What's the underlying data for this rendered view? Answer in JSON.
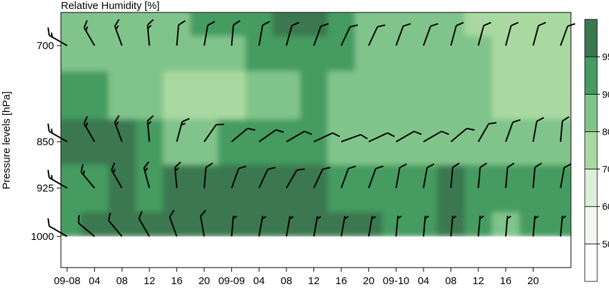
{
  "chart_data": {
    "type": "heatmap",
    "title": "Relative Humidity [%]",
    "ylabel": "Pressure levels [hPa]",
    "xlabel": "",
    "y_axis": {
      "levels": [
        700,
        850,
        925,
        1000
      ],
      "inverted": true
    },
    "x_axis": {
      "tick_labels": [
        "09-08",
        "04",
        "08",
        "12",
        "16",
        "20",
        "09-09",
        "04",
        "08",
        "12",
        "16",
        "20",
        "09-10",
        "04",
        "08",
        "12",
        "16",
        "20"
      ],
      "range_hours": [
        0,
        72
      ]
    },
    "colorbar": {
      "tick_labels": [
        "50",
        "60",
        "70",
        "80",
        "90",
        "95"
      ],
      "bins": [
        {
          "lower": 0,
          "upper": 50,
          "color": "#ffffff"
        },
        {
          "lower": 50,
          "upper": 60,
          "color": "#f2f8f0"
        },
        {
          "lower": 60,
          "upper": 70,
          "color": "#dcefd8"
        },
        {
          "lower": 70,
          "upper": 80,
          "color": "#a9d9a1"
        },
        {
          "lower": 80,
          "upper": 90,
          "color": "#80c48b"
        },
        {
          "lower": 90,
          "upper": 95,
          "color": "#459b61"
        },
        {
          "lower": 95,
          "upper": 100,
          "color": "#3a7750"
        }
      ]
    },
    "field": {
      "levels_hpa": [
        670,
        700,
        780,
        850,
        925,
        1000
      ],
      "hours": [
        0,
        4,
        8,
        12,
        16,
        20,
        24,
        28,
        32,
        36,
        40,
        44,
        48,
        52,
        56,
        60,
        64,
        68,
        72
      ],
      "rh": [
        [
          86,
          85,
          84,
          82,
          86,
          90,
          92,
          94,
          97,
          96,
          92,
          88,
          85,
          84,
          80,
          78,
          76,
          75,
          74
        ],
        [
          86,
          84,
          82,
          83,
          86,
          82,
          84,
          90,
          94,
          92,
          90,
          86,
          84,
          82,
          80,
          80,
          74,
          74,
          75
        ],
        [
          90,
          90,
          88,
          86,
          78,
          76,
          76,
          84,
          88,
          90,
          86,
          82,
          82,
          82,
          82,
          80,
          76,
          74,
          75
        ],
        [
          96,
          96,
          96,
          94,
          88,
          86,
          90,
          90,
          91,
          90,
          88,
          82,
          80,
          80,
          81,
          81,
          82,
          82,
          84
        ],
        [
          92,
          94,
          95,
          94,
          95,
          96,
          96,
          96,
          96,
          95,
          94,
          94,
          93,
          92,
          95,
          92,
          92,
          91,
          92
        ],
        [
          92,
          95,
          96,
          97,
          96,
          96,
          97,
          97,
          97,
          96,
          96,
          95,
          94,
          92,
          95,
          90,
          88,
          90,
          94
        ]
      ]
    },
    "wind_barbs": {
      "hours": [
        0,
        4,
        8,
        12,
        16,
        20,
        24,
        28,
        32,
        36,
        40,
        44,
        48,
        52,
        56,
        60,
        64,
        68,
        72
      ],
      "levels_hpa": [
        700,
        850,
        925,
        1000
      ],
      "direction_deg": [
        [
          300,
          330,
          340,
          355,
          5,
          10,
          5,
          10,
          15,
          20,
          25,
          25,
          20,
          20,
          15,
          15,
          15,
          15,
          20
        ],
        [
          300,
          330,
          340,
          355,
          15,
          35,
          50,
          55,
          60,
          65,
          70,
          65,
          60,
          60,
          50,
          30,
          20,
          10,
          5
        ],
        [
          300,
          320,
          330,
          345,
          355,
          5,
          20,
          25,
          30,
          25,
          20,
          20,
          10,
          10,
          5,
          5,
          5,
          5,
          10
        ],
        [
          300,
          310,
          320,
          330,
          340,
          350,
          5,
          10,
          10,
          10,
          10,
          10,
          5,
          5,
          5,
          5,
          5,
          5,
          5
        ]
      ],
      "speed_kt": [
        [
          15,
          15,
          15,
          15,
          10,
          10,
          10,
          10,
          10,
          10,
          10,
          10,
          10,
          10,
          10,
          10,
          10,
          10,
          10
        ],
        [
          15,
          15,
          15,
          15,
          15,
          10,
          10,
          10,
          10,
          10,
          10,
          10,
          10,
          10,
          10,
          10,
          10,
          10,
          10
        ],
        [
          15,
          15,
          15,
          15,
          15,
          10,
          10,
          10,
          10,
          10,
          10,
          10,
          10,
          10,
          10,
          10,
          10,
          10,
          10
        ],
        [
          10,
          10,
          10,
          10,
          10,
          10,
          5,
          5,
          5,
          5,
          5,
          5,
          5,
          5,
          5,
          5,
          5,
          5,
          5
        ]
      ]
    }
  }
}
